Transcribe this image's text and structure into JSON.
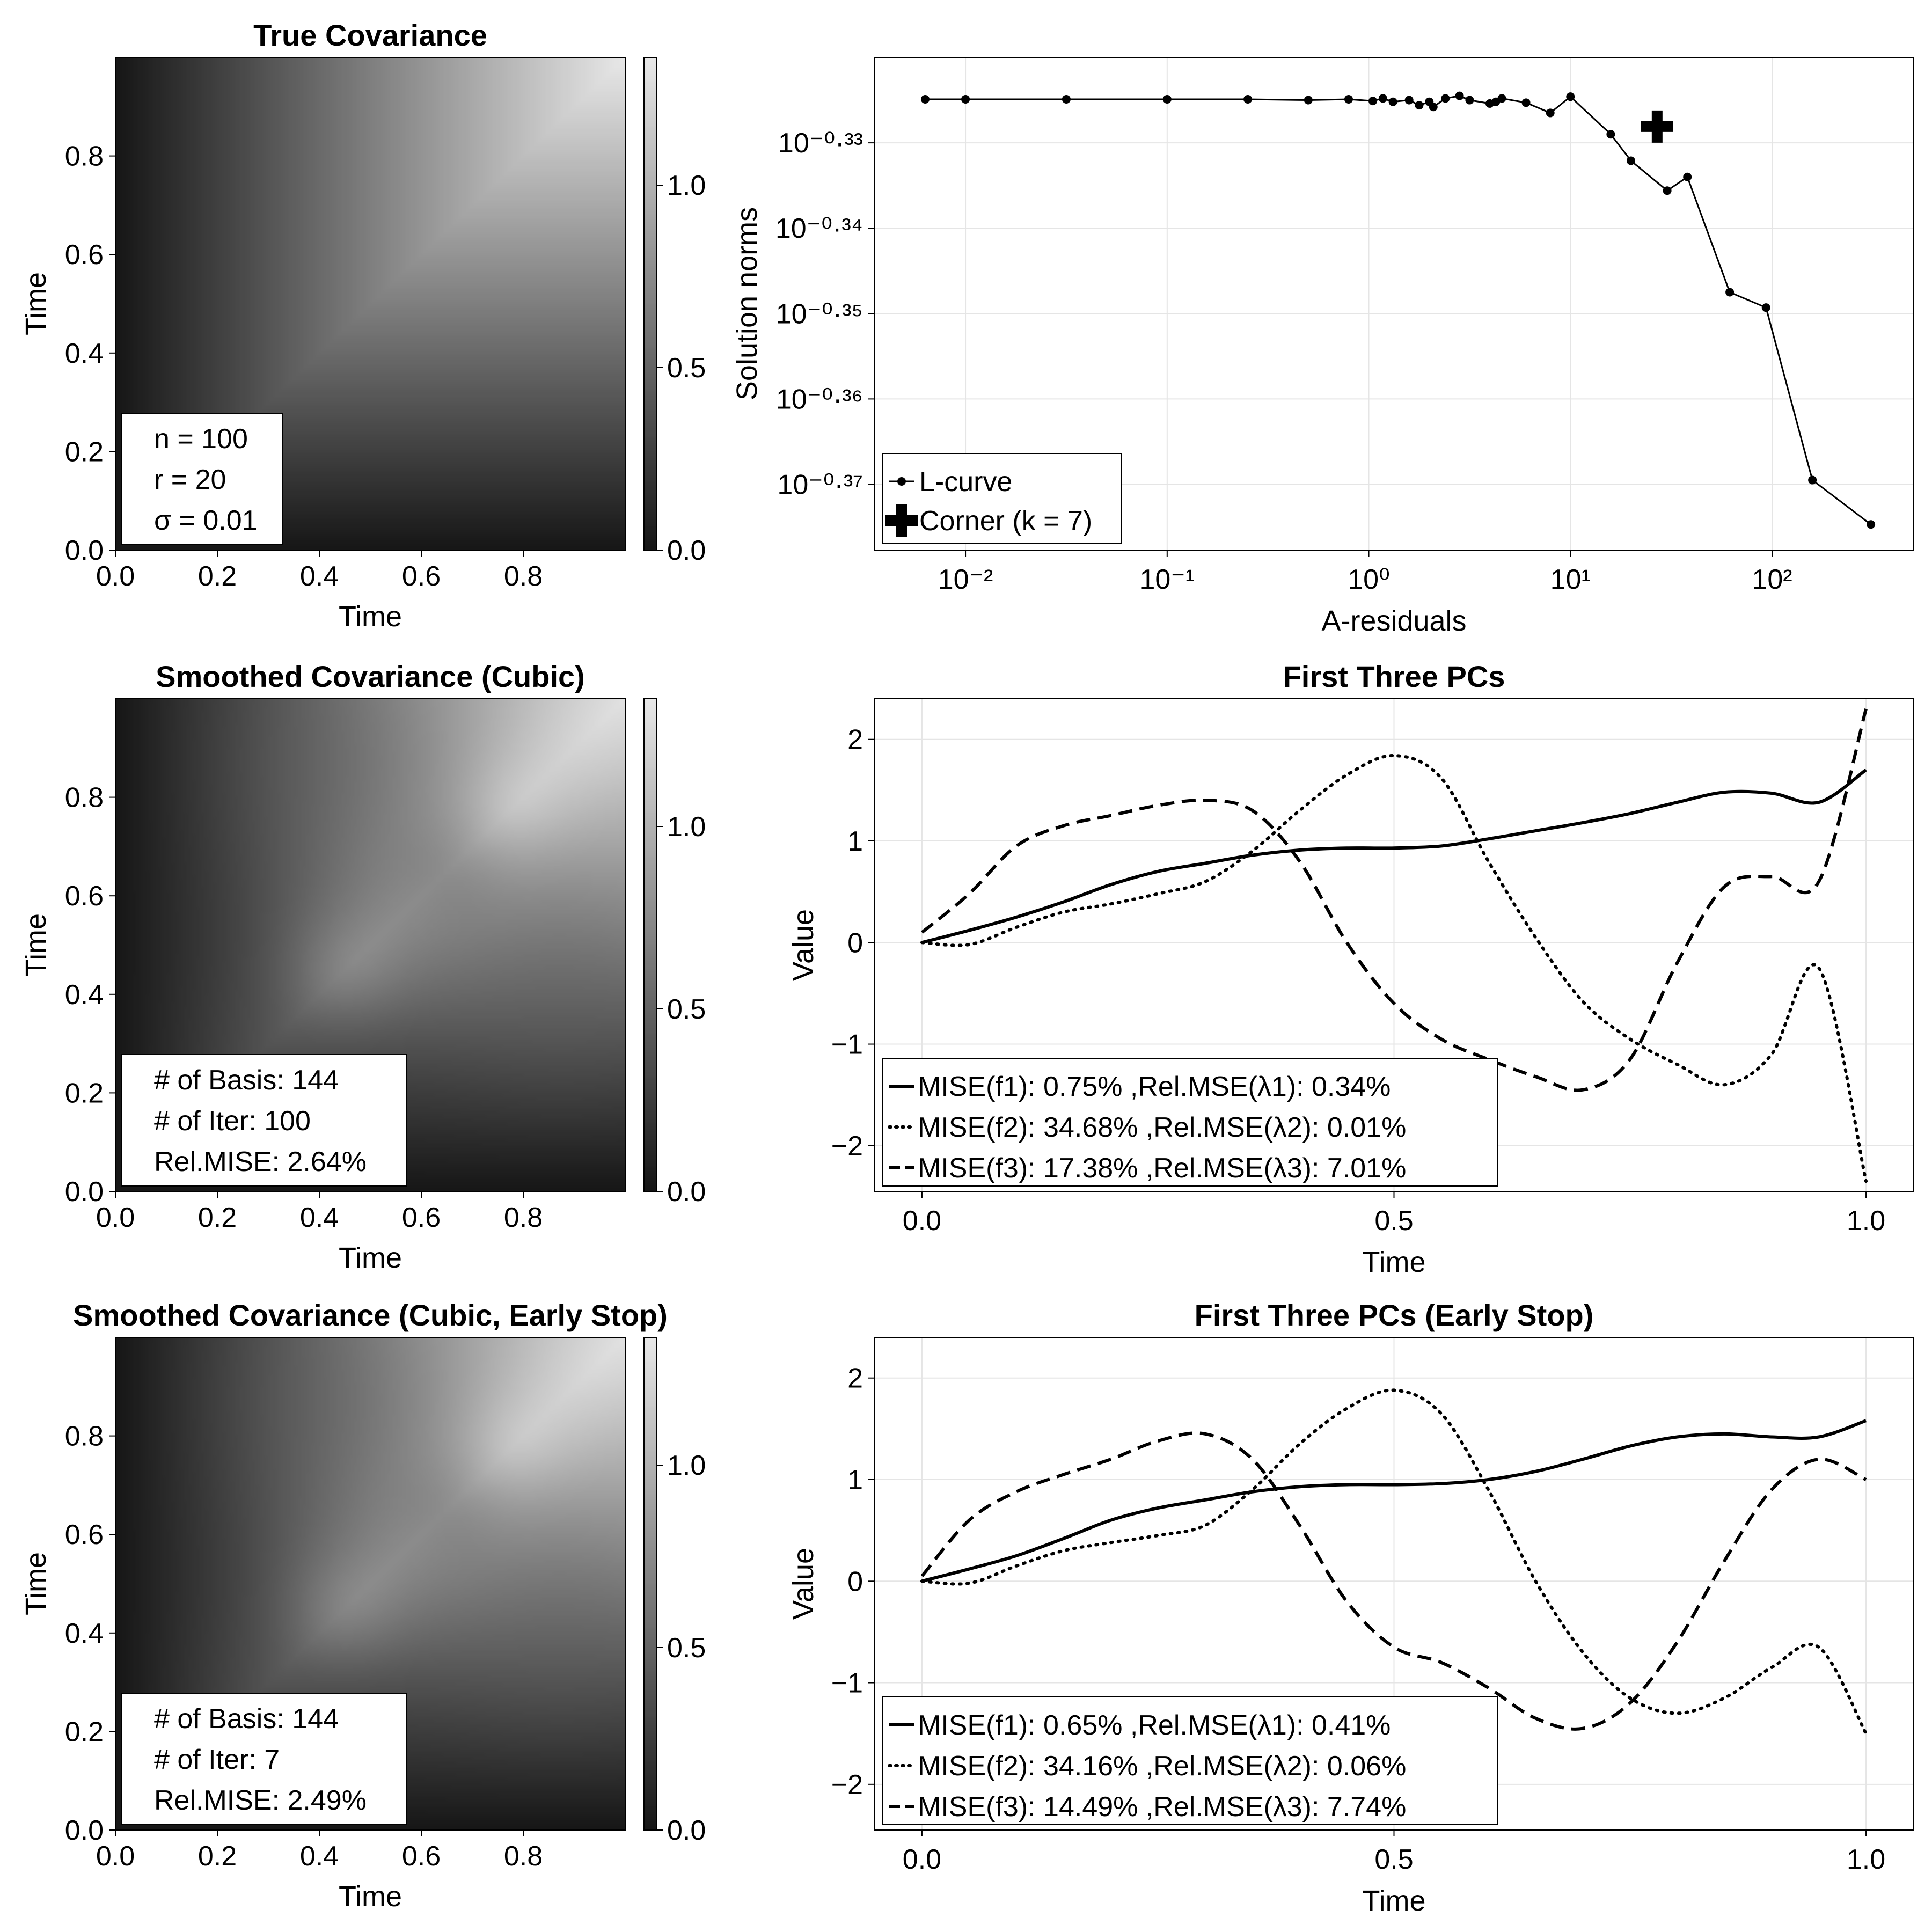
{
  "chart_data": [
    {
      "type": "heatmap",
      "title": "True Covariance",
      "xlabel": "Time",
      "ylabel": "Time",
      "xticks": [
        "0.0",
        "0.2",
        "0.4",
        "0.6",
        "0.8"
      ],
      "yticks": [
        "0.0",
        "0.2",
        "0.4",
        "0.6",
        "0.8"
      ],
      "xlim": [
        0,
        1
      ],
      "ylim": [
        0,
        1
      ],
      "colorbar": {
        "ticks": [
          "0.0",
          "0.5",
          "1.0"
        ],
        "range": [
          0,
          1.35
        ],
        "colormap": "grayscale"
      },
      "annotation": [
        "n = 100",
        "r = 20",
        "σ = 0.01"
      ],
      "surface": "min-kernel"
    },
    {
      "type": "line",
      "title": "",
      "xlabel": "A-residuals",
      "ylabel": "Solution norms",
      "xscale": "log",
      "yscale": "log",
      "xticks": [
        "10⁻²",
        "10⁻¹",
        "10⁰",
        "10¹",
        "10²"
      ],
      "yticks": [
        "10⁻⁰·³³",
        "10⁻⁰·³⁴",
        "10⁻⁰·³⁵",
        "10⁻⁰·³⁶",
        "10⁻⁰·³⁷"
      ],
      "grid": true,
      "legend": {
        "position": "bottom-left"
      },
      "series": [
        {
          "name": "L-curve",
          "marker": "dot",
          "log10_x": [
            2.49,
            2.2,
            1.97,
            1.79,
            1.58,
            1.48,
            1.3,
            1.2,
            1.0,
            0.9,
            0.78,
            0.66,
            0.63,
            0.6,
            0.5,
            0.45,
            0.38,
            0.32,
            0.3,
            0.25,
            0.2,
            0.12,
            0.07,
            0.02,
            -0.1,
            -0.3,
            -0.6,
            -1.0,
            -1.5,
            -2.0,
            -2.2
          ],
          "log10_y": [
            -0.3747,
            -0.3695,
            -0.3493,
            -0.3475,
            -0.334,
            -0.3356,
            -0.3321,
            -0.329,
            -0.3246,
            -0.3265,
            -0.3253,
            -0.3248,
            -0.3252,
            -0.3254,
            -0.325,
            -0.3245,
            -0.3248,
            -0.3258,
            -0.3252,
            -0.3256,
            -0.325,
            -0.3252,
            -0.3248,
            -0.3251,
            -0.3249,
            -0.325,
            -0.3249,
            -0.3249,
            -0.3249,
            -0.3249,
            -0.3249
          ]
        },
        {
          "name": "Corner (k = 7)",
          "marker": "cross",
          "log10_x": [
            1.43
          ],
          "log10_y": [
            -0.3281
          ]
        }
      ]
    },
    {
      "type": "heatmap",
      "title": "Smoothed Covariance (Cubic)",
      "xlabel": "Time",
      "ylabel": "Time",
      "xticks": [
        "0.0",
        "0.2",
        "0.4",
        "0.6",
        "0.8"
      ],
      "yticks": [
        "0.0",
        "0.2",
        "0.4",
        "0.6",
        "0.8"
      ],
      "xlim": [
        0,
        1
      ],
      "ylim": [
        0,
        1
      ],
      "colorbar": {
        "ticks": [
          "0.0",
          "0.5",
          "1.0"
        ],
        "range": [
          0,
          1.35
        ],
        "colormap": "grayscale"
      },
      "annotation": [
        "# of Basis: 144",
        "# of Iter: 100",
        "Rel.MISE: 2.64%"
      ],
      "surface": "smoothed"
    },
    {
      "type": "line",
      "title": "First Three PCs",
      "xlabel": "Time",
      "ylabel": "Value",
      "xticks": [
        "0.0",
        "0.5",
        "1.0"
      ],
      "yticks": [
        "−2",
        "−1",
        "0",
        "1",
        "2"
      ],
      "xlim": [
        -0.05,
        1.05
      ],
      "ylim": [
        -2.45,
        2.4
      ],
      "grid": true,
      "legend": {
        "position": "bottom-left"
      },
      "x": [
        0.0,
        0.05,
        0.1,
        0.15,
        0.2,
        0.25,
        0.3,
        0.35,
        0.4,
        0.45,
        0.5,
        0.55,
        0.6,
        0.65,
        0.7,
        0.75,
        0.8,
        0.85,
        0.9,
        0.95,
        1.0
      ],
      "series": [
        {
          "name": "MISE(f1): 0.75% ,Rel.MSE(λ1): 0.34%",
          "style": "solid",
          "values": [
            0.0,
            0.12,
            0.25,
            0.4,
            0.57,
            0.7,
            0.78,
            0.86,
            0.91,
            0.93,
            0.93,
            0.95,
            1.02,
            1.1,
            1.18,
            1.27,
            1.38,
            1.48,
            1.47,
            1.38,
            1.7
          ]
        },
        {
          "name": "MISE(f2): 34.68% ,Rel.MSE(λ2): 0.01%",
          "style": "dotted",
          "values": [
            0.0,
            -0.02,
            0.15,
            0.3,
            0.38,
            0.48,
            0.6,
            0.9,
            1.3,
            1.65,
            1.84,
            1.62,
            0.8,
            0.05,
            -0.58,
            -0.95,
            -1.2,
            -1.4,
            -1.1,
            -0.25,
            -2.35
          ]
        },
        {
          "name": "MISE(f3): 17.38% ,Rel.MSE(λ3): 7.01%",
          "style": "dashed",
          "values": [
            0.1,
            0.48,
            0.95,
            1.15,
            1.25,
            1.35,
            1.4,
            1.3,
            0.8,
            0.0,
            -0.6,
            -0.95,
            -1.15,
            -1.32,
            -1.45,
            -1.15,
            -0.2,
            0.55,
            0.65,
            0.6,
            2.3
          ]
        }
      ]
    },
    {
      "type": "heatmap",
      "title": "Smoothed Covariance (Cubic, Early Stop)",
      "xlabel": "Time",
      "ylabel": "Time",
      "xticks": [
        "0.0",
        "0.2",
        "0.4",
        "0.6",
        "0.8"
      ],
      "yticks": [
        "0.0",
        "0.2",
        "0.4",
        "0.6",
        "0.8"
      ],
      "xlim": [
        0,
        1
      ],
      "ylim": [
        0,
        1
      ],
      "colorbar": {
        "ticks": [
          "0.0",
          "0.5",
          "1.0"
        ],
        "range": [
          0,
          1.35
        ],
        "colormap": "grayscale"
      },
      "annotation": [
        "# of Basis: 144",
        "# of Iter: 7",
        "Rel.MISE: 2.49%"
      ],
      "surface": "smoothed"
    },
    {
      "type": "line",
      "title": "First Three PCs (Early Stop)",
      "xlabel": "Time",
      "ylabel": "Value",
      "xticks": [
        "0.0",
        "0.5",
        "1.0"
      ],
      "yticks": [
        "−2",
        "−1",
        "0",
        "1",
        "2"
      ],
      "xlim": [
        -0.05,
        1.05
      ],
      "ylim": [
        -2.45,
        2.4
      ],
      "grid": true,
      "legend": {
        "position": "bottom-left"
      },
      "x": [
        0.0,
        0.05,
        0.1,
        0.15,
        0.2,
        0.25,
        0.3,
        0.35,
        0.4,
        0.45,
        0.5,
        0.55,
        0.6,
        0.65,
        0.7,
        0.75,
        0.8,
        0.85,
        0.9,
        0.95,
        1.0
      ],
      "series": [
        {
          "name": "MISE(f1): 0.65% ,Rel.MSE(λ1): 0.41%",
          "style": "solid",
          "values": [
            0.0,
            0.12,
            0.25,
            0.42,
            0.6,
            0.72,
            0.8,
            0.88,
            0.93,
            0.95,
            0.95,
            0.96,
            1.0,
            1.08,
            1.2,
            1.33,
            1.42,
            1.45,
            1.42,
            1.42,
            1.58
          ]
        },
        {
          "name": "MISE(f2): 34.16% ,Rel.MSE(λ2): 0.06%",
          "style": "dotted",
          "values": [
            0.0,
            -0.02,
            0.15,
            0.3,
            0.38,
            0.45,
            0.55,
            0.9,
            1.35,
            1.7,
            1.88,
            1.65,
            0.9,
            0.0,
            -0.7,
            -1.15,
            -1.3,
            -1.15,
            -0.85,
            -0.65,
            -1.5
          ]
        },
        {
          "name": "MISE(f3): 14.49% ,Rel.MSE(λ3): 7.74%",
          "style": "dashed",
          "values": [
            0.05,
            0.6,
            0.88,
            1.05,
            1.2,
            1.38,
            1.45,
            1.2,
            0.55,
            -0.2,
            -0.65,
            -0.8,
            -1.05,
            -1.35,
            -1.45,
            -1.2,
            -0.6,
            0.2,
            0.9,
            1.2,
            1.0
          ]
        }
      ]
    }
  ]
}
